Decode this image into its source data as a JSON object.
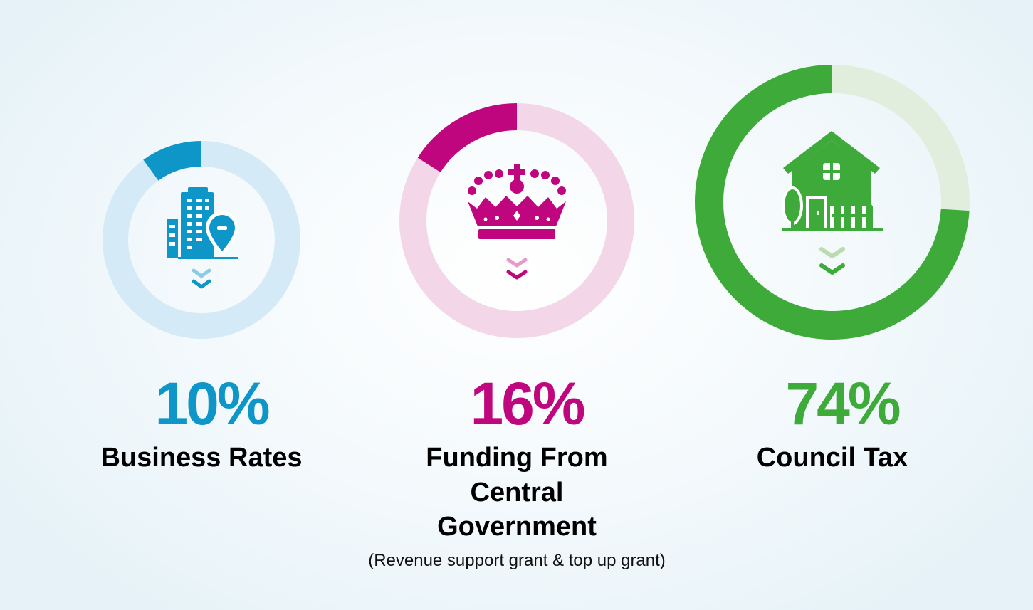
{
  "chart_data": {
    "type": "pie",
    "variant": "donut",
    "series": [
      {
        "name": "Business Rates",
        "value": 10,
        "value_label": "10%",
        "label_lines": [
          "Business Rates"
        ],
        "subtitle": "",
        "color": "#0f96c8",
        "track_color": "#d5eaf7",
        "icon": "office-building-location-icon"
      },
      {
        "name": "Funding From Central Government",
        "value": 16,
        "value_label": "16%",
        "label_lines": [
          "Funding From",
          "Central",
          "Government"
        ],
        "subtitle": "(Revenue support grant & top up grant)",
        "color": "#c0067e",
        "track_color": "#f3d6e8",
        "icon": "crown-icon"
      },
      {
        "name": "Council Tax",
        "value": 74,
        "value_label": "74%",
        "label_lines": [
          "Council Tax"
        ],
        "subtitle": "",
        "color": "#3eaa39",
        "track_color": "#e2eedd",
        "icon": "house-icon"
      }
    ],
    "legend": "none",
    "grid": false
  }
}
